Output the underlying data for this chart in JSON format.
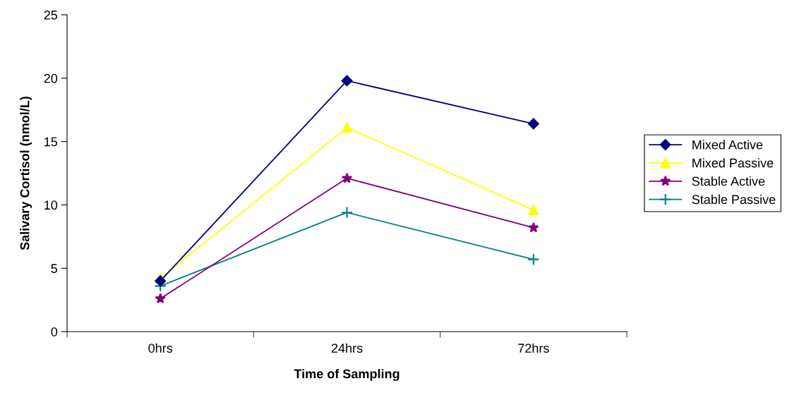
{
  "chart_data": {
    "type": "line",
    "xlabel": "Time of Sampling",
    "ylabel": "Salivary Cortisol (nmol/L)",
    "categories": [
      "0hrs",
      "24hrs",
      "72hrs"
    ],
    "ylim": [
      0,
      25
    ],
    "yticks": [
      0,
      5,
      10,
      15,
      20,
      25
    ],
    "grid": false,
    "legend": "right",
    "series": [
      {
        "name": "Mixed Active",
        "color": "#000080",
        "marker": "diamond",
        "values": [
          4.0,
          19.8,
          16.4
        ]
      },
      {
        "name": "Mixed Passive",
        "color": "#ffff00",
        "marker": "triangle",
        "values": [
          4.2,
          16.1,
          9.6
        ]
      },
      {
        "name": "Stable Active",
        "color": "#800080",
        "marker": "star",
        "values": [
          2.6,
          12.1,
          8.2
        ]
      },
      {
        "name": "Stable Passive",
        "color": "#008080",
        "marker": "cross",
        "values": [
          3.6,
          9.4,
          5.7
        ]
      }
    ]
  }
}
